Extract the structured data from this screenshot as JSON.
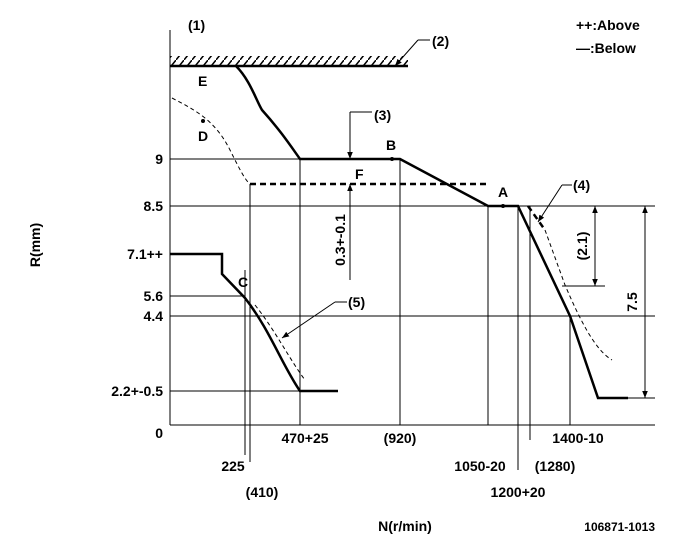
{
  "callouts": {
    "c1": "(1)",
    "c2": "(2)",
    "c3": "(3)",
    "c4": "(4)",
    "c5": "(5)"
  },
  "legend": [
    "++:Above",
    "—:Below"
  ],
  "points": {
    "A": "A",
    "B": "B",
    "C": "C",
    "D": "D",
    "E": "E",
    "F": "F"
  },
  "r_axis": {
    "title": "R(mm)",
    "ticks": [
      "9",
      "8.5",
      "7.1++",
      "5.6",
      "4.4",
      "2.2+-0.5",
      "0"
    ]
  },
  "n_axis": {
    "title": "N(r/min)",
    "ticks": [
      "225",
      "(410)",
      "470+25",
      "(920)",
      "1050-20",
      "1200+20",
      "(1280)",
      "1400-10"
    ]
  },
  "dimensions": {
    "gap": "0.3+-0.1",
    "small": "(2.1)",
    "large": "7.5"
  },
  "drawing_number": "106871-1013"
}
